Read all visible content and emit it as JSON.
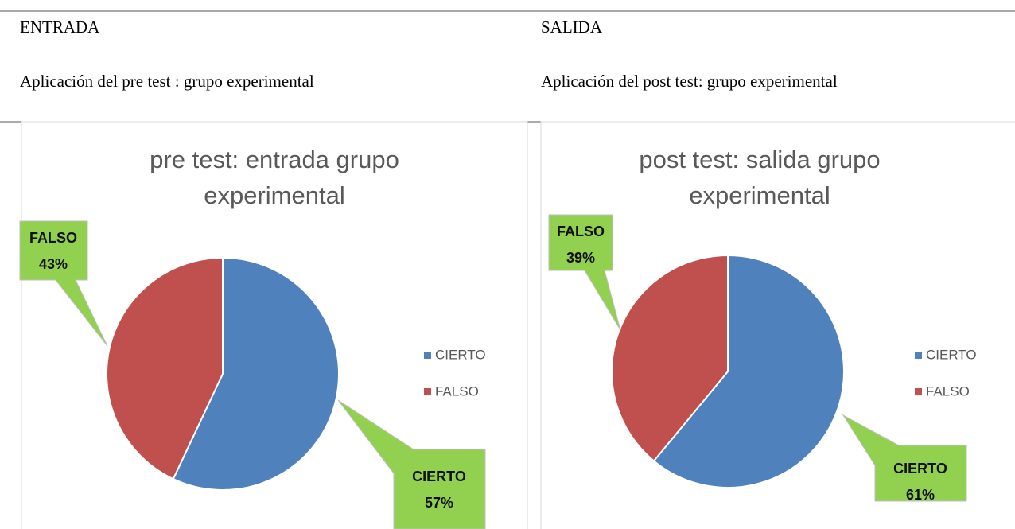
{
  "table": {
    "headers": [
      "ENTRADA",
      "SALIDA"
    ],
    "subheaders": [
      "Aplicación del pre test : grupo experimental",
      "Aplicación del post test: grupo experimental"
    ]
  },
  "chart_data": [
    {
      "type": "pie",
      "title": "pre test: entrada grupo experimental",
      "categories": [
        "CIERTO",
        "FALSO"
      ],
      "values": [
        57,
        43
      ],
      "value_labels": [
        "57%",
        "43%"
      ],
      "colors": [
        "#4f81bd",
        "#c0504d"
      ],
      "legend": "right"
    },
    {
      "type": "pie",
      "title": "post test: salida grupo experimental",
      "categories": [
        "CIERTO",
        "FALSO"
      ],
      "values": [
        61,
        39
      ],
      "value_labels": [
        "61%",
        "39%"
      ],
      "colors": [
        "#4f81bd",
        "#c0504d"
      ],
      "legend": "right"
    }
  ]
}
